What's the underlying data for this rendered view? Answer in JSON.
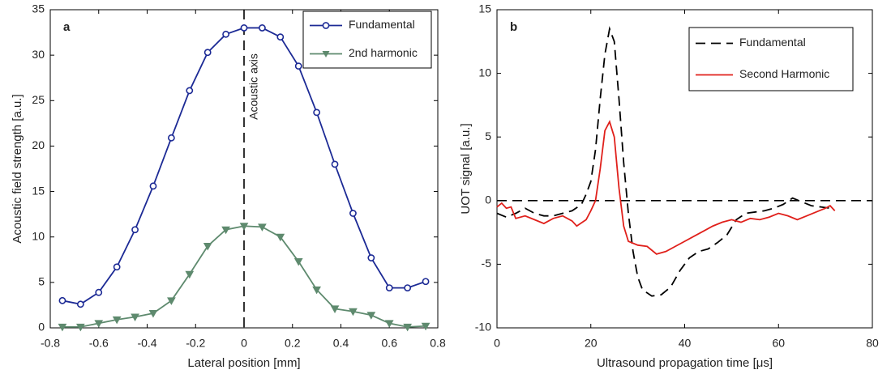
{
  "chart_data": [
    {
      "type": "line",
      "panel_label": "a",
      "xlabel": "Lateral position [mm]",
      "ylabel": "Acoustic field strength [a.u.]",
      "annotation": "Acoustic axis",
      "vline": 0,
      "xlim": [
        -0.8,
        0.8
      ],
      "xticks": [
        -0.8,
        -0.6,
        -0.4,
        -0.2,
        0,
        0.2,
        0.4,
        0.6,
        0.8
      ],
      "ylim": [
        0,
        35
      ],
      "yticks": [
        0,
        5,
        10,
        15,
        20,
        25,
        30,
        35
      ],
      "legend": "upper right",
      "series": [
        {
          "name": "Fundamental",
          "color": "#1c2a95",
          "marker": "circle",
          "linestyle": "solid",
          "x": [
            -0.75,
            -0.675,
            -0.6,
            -0.525,
            -0.45,
            -0.375,
            -0.3,
            -0.225,
            -0.15,
            -0.075,
            0,
            0.075,
            0.15,
            0.225,
            0.3,
            0.375,
            0.45,
            0.525,
            0.6,
            0.675,
            0.75
          ],
          "values": [
            3.0,
            2.6,
            3.9,
            6.7,
            10.8,
            15.6,
            20.9,
            26.1,
            30.3,
            32.3,
            33.0,
            33.0,
            32.0,
            28.8,
            23.7,
            18.0,
            12.6,
            7.7,
            4.4,
            4.4,
            5.1
          ]
        },
        {
          "name": "2nd harmonic",
          "color": "#5e8a6e",
          "marker": "triangle-down",
          "linestyle": "solid",
          "x": [
            -0.75,
            -0.675,
            -0.6,
            -0.525,
            -0.45,
            -0.375,
            -0.3,
            -0.225,
            -0.15,
            -0.075,
            0,
            0.075,
            0.15,
            0.225,
            0.3,
            0.375,
            0.45,
            0.525,
            0.6,
            0.675,
            0.75
          ],
          "values": [
            0.1,
            0.1,
            0.5,
            0.9,
            1.2,
            1.6,
            3.0,
            5.9,
            9.0,
            10.8,
            11.2,
            11.1,
            10.0,
            7.3,
            4.2,
            2.1,
            1.8,
            1.4,
            0.5,
            0.1,
            0.2
          ]
        }
      ]
    },
    {
      "type": "line",
      "panel_label": "b",
      "xlabel": "Ultrasound propagation time [μs]",
      "ylabel": "UOT signal [a.u.]",
      "hline": 0,
      "xlim": [
        0,
        80
      ],
      "xticks": [
        0,
        20,
        40,
        60,
        80
      ],
      "ylim": [
        -10,
        15
      ],
      "yticks": [
        -10,
        -5,
        0,
        5,
        10,
        15
      ],
      "legend": "upper right",
      "series": [
        {
          "name": "Fundamental",
          "color": "#000000",
          "marker": "none",
          "linestyle": "dashed",
          "x": [
            0,
            2,
            4,
            6,
            8,
            10,
            12,
            14,
            16,
            18,
            19,
            20,
            21,
            22,
            23,
            24,
            25,
            26,
            27,
            28,
            29,
            30,
            31,
            33,
            35,
            37,
            39,
            41,
            43,
            45,
            47,
            49,
            51,
            53,
            55,
            57,
            59,
            61,
            63,
            65,
            67,
            69,
            71
          ],
          "values": [
            -1.0,
            -1.3,
            -1.0,
            -0.6,
            -1.0,
            -1.2,
            -1.2,
            -1.0,
            -0.8,
            -0.3,
            0.5,
            1.5,
            4,
            8,
            11.5,
            13.5,
            12.5,
            8,
            3,
            -1,
            -4,
            -6,
            -7,
            -7.5,
            -7.4,
            -6.8,
            -5.5,
            -4.5,
            -4.0,
            -3.8,
            -3.3,
            -2.7,
            -1.5,
            -1.0,
            -0.9,
            -0.8,
            -0.6,
            -0.3,
            0.2,
            -0.1,
            -0.4,
            -0.5,
            -0.6
          ]
        },
        {
          "name": "Second Harmonic",
          "color": "#e0201b",
          "marker": "none",
          "linestyle": "solid",
          "x": [
            0,
            1,
            2,
            3,
            4,
            6,
            8,
            10,
            12,
            14,
            16,
            17,
            19,
            20,
            21,
            22,
            23,
            24,
            25,
            26,
            27,
            28,
            30,
            32,
            34,
            36,
            38,
            40,
            42,
            44,
            46,
            48,
            50,
            52,
            54,
            56,
            58,
            60,
            62,
            64,
            66,
            68,
            70,
            71,
            72
          ],
          "values": [
            -0.5,
            -0.2,
            -0.6,
            -0.5,
            -1.4,
            -1.2,
            -1.5,
            -1.8,
            -1.4,
            -1.2,
            -1.6,
            -2.0,
            -1.5,
            -0.8,
            0,
            2.5,
            5.5,
            6.2,
            5,
            1,
            -2,
            -3.2,
            -3.5,
            -3.6,
            -4.2,
            -4.0,
            -3.6,
            -3.2,
            -2.8,
            -2.4,
            -2.0,
            -1.7,
            -1.5,
            -1.7,
            -1.4,
            -1.5,
            -1.3,
            -1.0,
            -1.2,
            -1.5,
            -1.2,
            -0.9,
            -0.6,
            -0.4,
            -0.8
          ]
        }
      ]
    }
  ]
}
